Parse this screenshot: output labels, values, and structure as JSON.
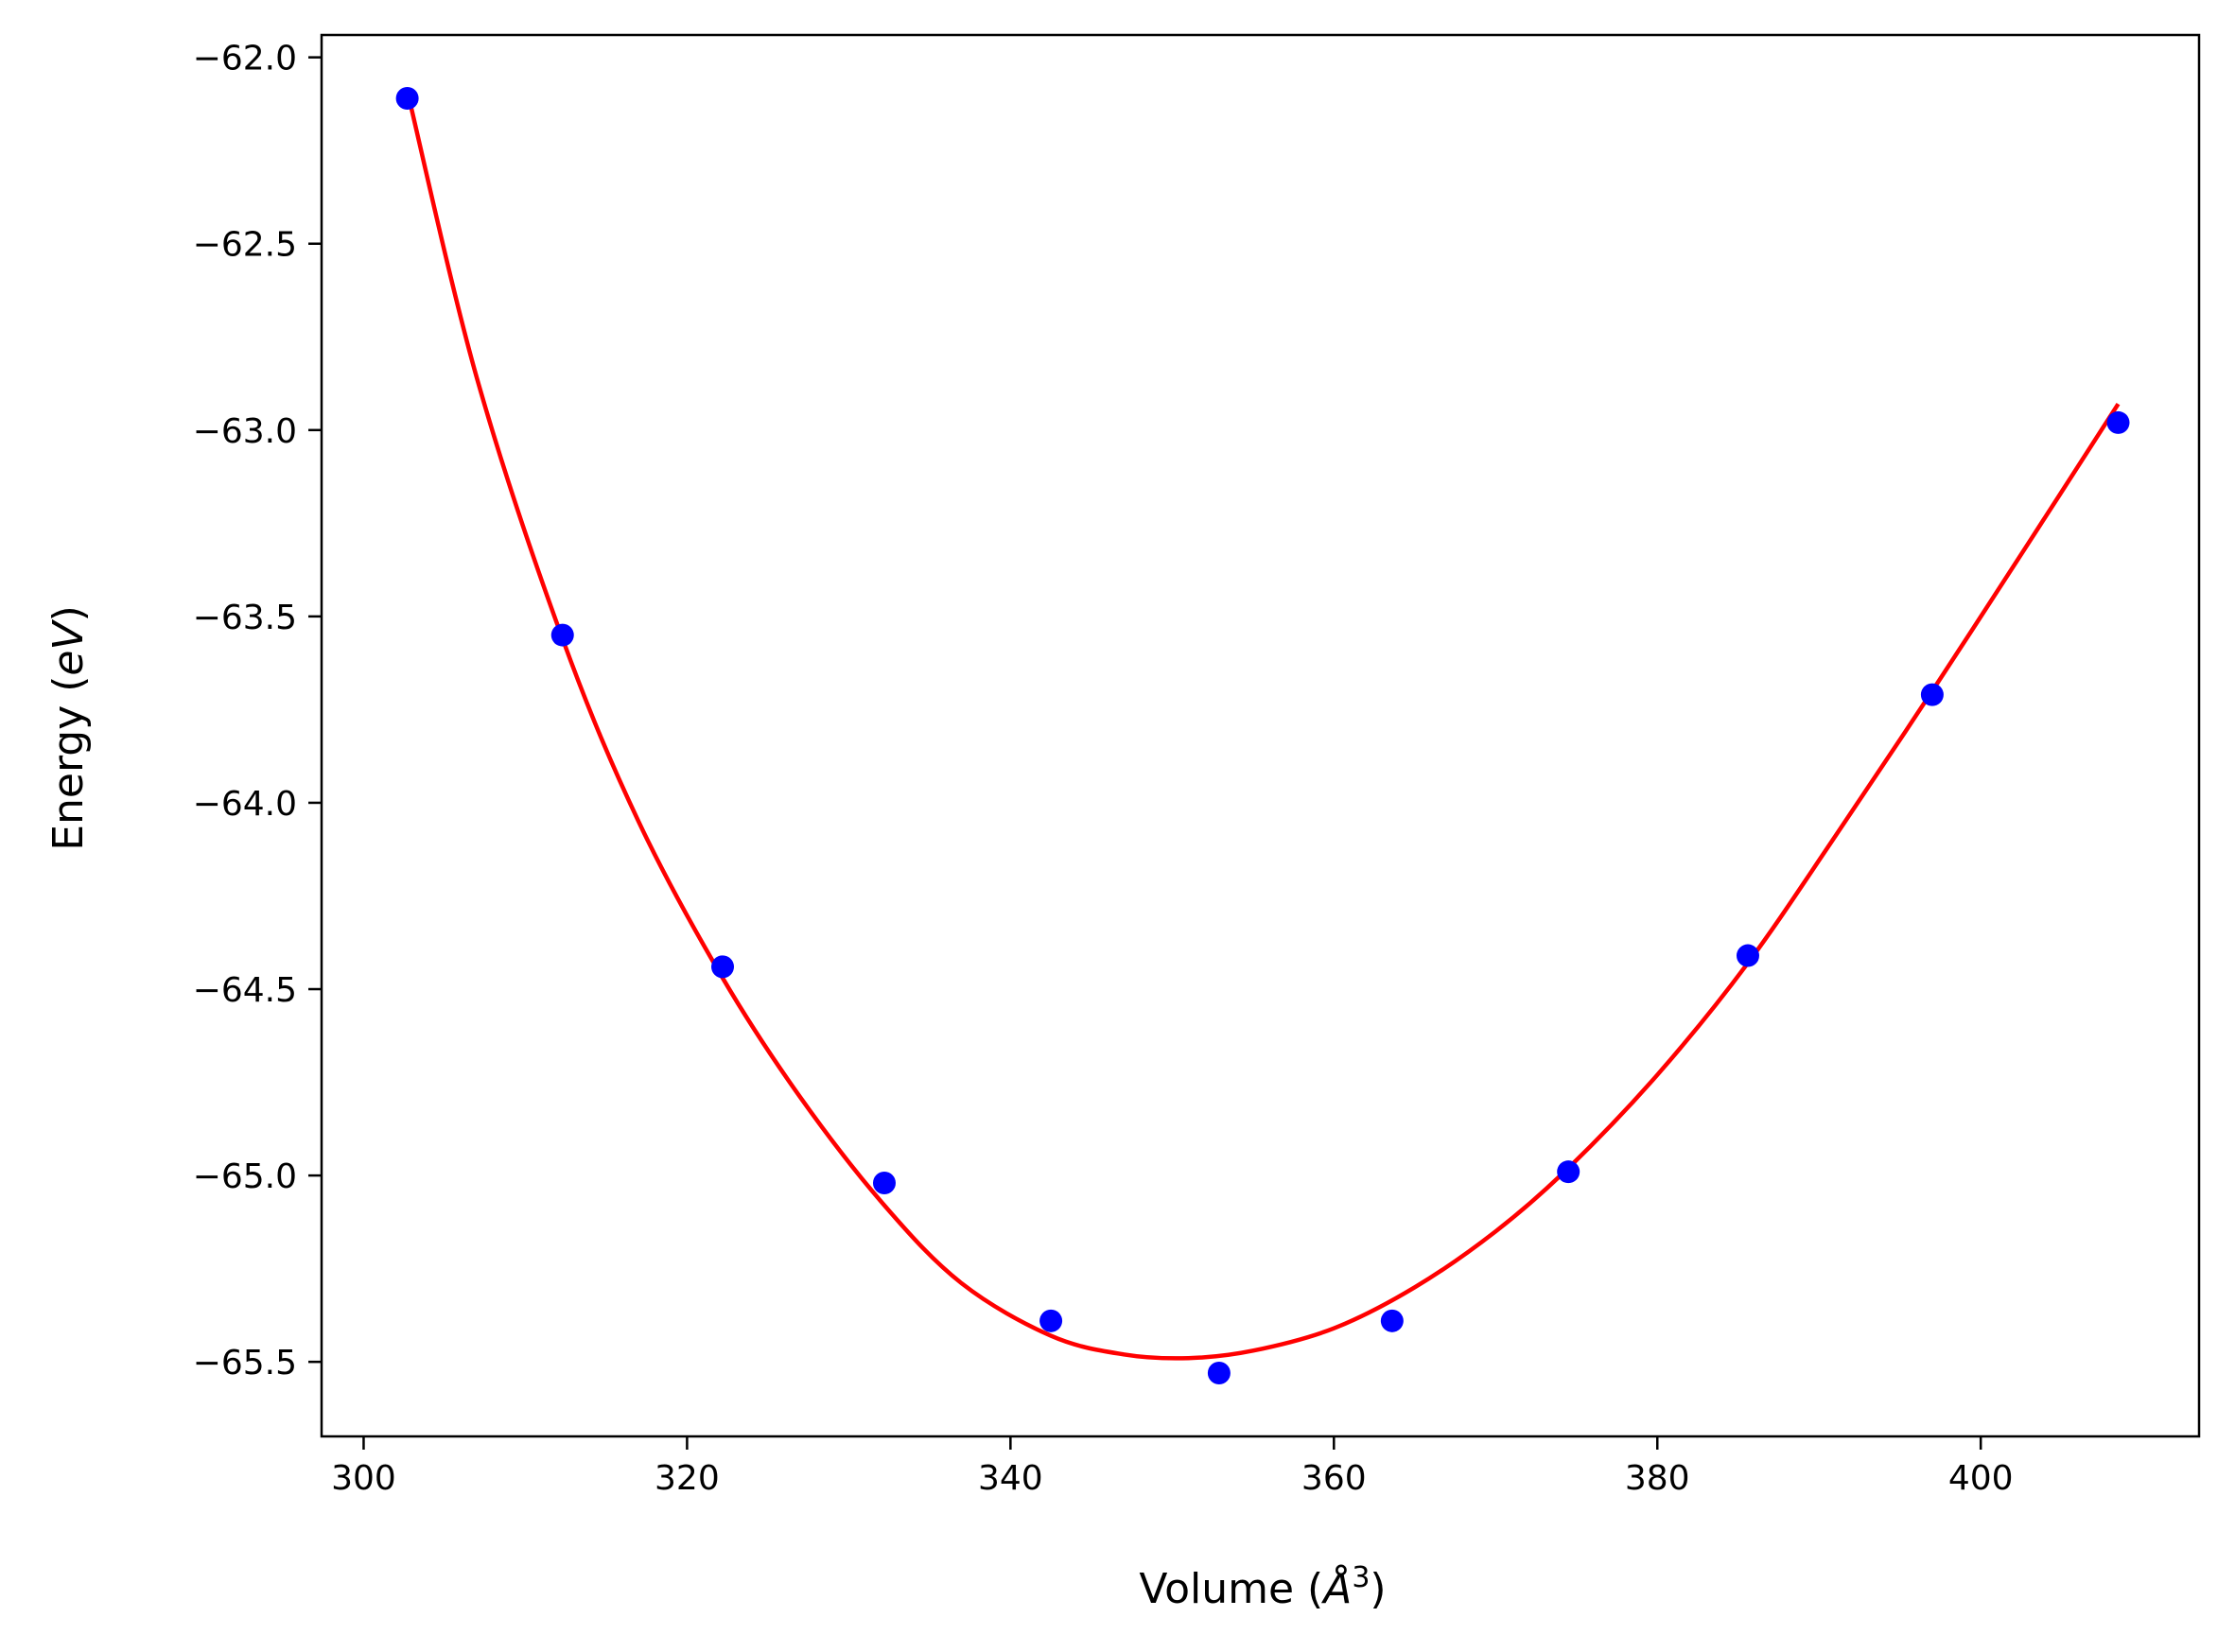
{
  "chart_data": {
    "type": "scatter",
    "title": "",
    "xlabel": "Volume",
    "xlabel_unit": "Å",
    "xlabel_unit_exp": "3",
    "ylabel": "Energy",
    "ylabel_unit": "eV",
    "xlim": [
      297.4,
      413.5
    ],
    "ylim": [
      -65.7,
      -61.94
    ],
    "xticks": [
      300,
      320,
      340,
      360,
      380,
      400
    ],
    "yticks": [
      -62.0,
      -62.5,
      -63.0,
      -63.5,
      -64.0,
      -64.5,
      -65.0,
      -65.5
    ],
    "xtick_labels": [
      "300",
      "320",
      "340",
      "360",
      "380",
      "400"
    ],
    "ytick_labels": [
      "−62.0",
      "−62.5",
      "−63.0",
      "−63.5",
      "−64.0",
      "−64.5",
      "−65.0",
      "−65.5"
    ],
    "grid": false,
    "series": [
      {
        "kind": "points",
        "color": "#0000ff",
        "x": [
          302.7,
          312.3,
          322.2,
          332.2,
          342.5,
          352.9,
          363.6,
          374.5,
          385.6,
          397.0,
          408.5
        ],
        "y": [
          -62.11,
          -63.55,
          -64.44,
          -65.02,
          -65.39,
          -65.53,
          -65.39,
          -64.99,
          -64.41,
          -63.71,
          -62.98
        ]
      },
      {
        "kind": "fit-curve",
        "color": "#ff0000",
        "x": [
          302.7,
          307.0,
          312.3,
          317.0,
          322.2,
          327.0,
          332.2,
          337.0,
          342.5,
          347.0,
          351.0,
          355.0,
          360.0,
          365.0,
          370.0,
          374.5,
          380.0,
          385.6,
          391.0,
          397.0,
          403.0,
          408.5
        ],
        "y": [
          -62.09,
          -62.86,
          -63.56,
          -64.05,
          -64.47,
          -64.79,
          -65.08,
          -65.29,
          -65.43,
          -65.48,
          -65.49,
          -65.47,
          -65.41,
          -65.3,
          -65.15,
          -64.98,
          -64.73,
          -64.43,
          -64.09,
          -63.7,
          -63.3,
          -62.93
        ]
      }
    ]
  }
}
